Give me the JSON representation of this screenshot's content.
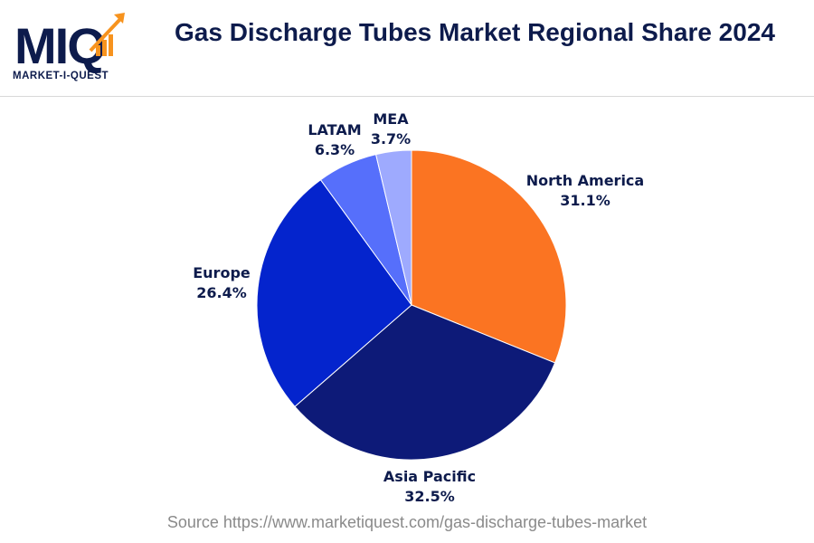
{
  "header": {
    "logo_letters": "MIQ",
    "logo_subtext": "MARKET-I-QUEST"
  },
  "colors": {
    "north_america": "#fb7422",
    "asia_pacific": "#0d1a78",
    "europe": "#0424cd",
    "latam": "#566ffb",
    "mea": "#9eaafe",
    "navy": "#0d1b4c",
    "orange": "#f7931e"
  },
  "chart_data": {
    "type": "pie",
    "title": "Gas Discharge Tubes Market Regional Share 2024",
    "start_angle_deg": 0,
    "direction": "clockwise",
    "slices": [
      {
        "label": "North America",
        "value": 31.1,
        "value_label": "31.1%",
        "color": "#fb7422"
      },
      {
        "label": "Asia Pacific",
        "value": 32.5,
        "value_label": "32.5%",
        "color": "#0d1a78"
      },
      {
        "label": "Europe",
        "value": 26.4,
        "value_label": "26.4%",
        "color": "#0424cd"
      },
      {
        "label": "LATAM",
        "value": 6.3,
        "value_label": "6.3%",
        "color": "#566ffb"
      },
      {
        "label": "MEA",
        "value": 3.7,
        "value_label": "3.7%",
        "color": "#9eaafe"
      }
    ]
  },
  "footer": {
    "source": "Source https://www.marketiquest.com/gas-discharge-tubes-market"
  }
}
